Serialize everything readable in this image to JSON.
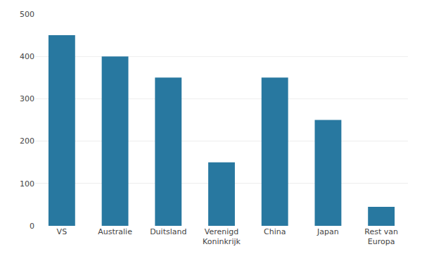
{
  "chart_data": {
    "type": "bar",
    "categories": [
      "VS",
      "Australie",
      "Duitsland",
      "Verenigd\nKoninkrijk",
      "China",
      "Japan",
      "Rest van\nEuropa"
    ],
    "values": [
      450,
      400,
      350,
      150,
      350,
      250,
      45
    ],
    "color": "#2878a0",
    "ylim": [
      0,
      500
    ],
    "yticks": [
      0,
      100,
      200,
      300,
      400,
      500
    ],
    "grid": true
  }
}
